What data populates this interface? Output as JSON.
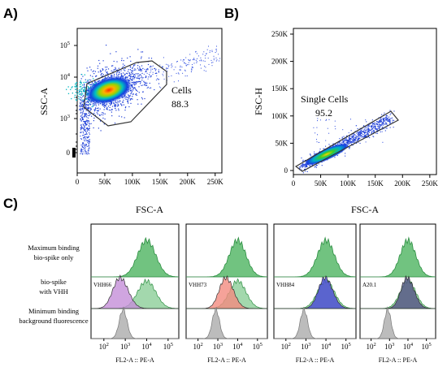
{
  "panels": {
    "a": "A)",
    "b": "B)",
    "c": "C)"
  },
  "row_labels": [
    {
      "line1": "Maximum binding",
      "line2": "bio-spike only"
    },
    {
      "line1": "bio-spike",
      "line2": "with VHH"
    },
    {
      "line1": "Minimum binding",
      "line2": "background fluorescence"
    }
  ],
  "chart_data": [
    {
      "type": "scatter",
      "xlabel": "FSC-A",
      "ylabel": "SSC-A",
      "x_ticks": [
        "0",
        "50K",
        "100K",
        "150K",
        "200K",
        "250K"
      ],
      "x_tick_values": [
        0,
        50000,
        100000,
        150000,
        200000,
        250000
      ],
      "xlim": [
        0,
        262144
      ],
      "y_ticks": [
        {
          "base": "0",
          "exp": ""
        },
        {
          "base": "10",
          "exp": "3"
        },
        {
          "base": "10",
          "exp": "4"
        },
        {
          "base": "10",
          "exp": "5"
        }
      ],
      "y_scale": "biexponential",
      "gate": {
        "name": "Cells",
        "percent": "88.3"
      },
      "point_cloud": {
        "x_center": 60000,
        "y_center_log": 3.75,
        "count_estimate": 2000
      },
      "colors": {
        "low": "#1540e0",
        "mid": "#00c0c0",
        "high": "#ff2a00"
      }
    },
    {
      "type": "scatter",
      "xlabel": "FSC-A",
      "ylabel": "FSC-H",
      "x_ticks": [
        "0",
        "50K",
        "100K",
        "150K",
        "200K",
        "250K"
      ],
      "x_tick_values": [
        0,
        50000,
        100000,
        150000,
        200000,
        250000
      ],
      "xlim": [
        0,
        262144
      ],
      "y_ticks": [
        "0",
        "50K",
        "100K",
        "150K",
        "200K",
        "250K"
      ],
      "y_tick_values": [
        0,
        50000,
        100000,
        150000,
        200000,
        250000
      ],
      "ylim": [
        0,
        262144
      ],
      "gate": {
        "name": "Single Cells",
        "percent": "95.2"
      },
      "point_cloud": {
        "x_center": 70000,
        "y_center": 45000,
        "count_estimate": 1500
      }
    },
    {
      "type": "area",
      "xlabel": "FL2-A :: PE-A",
      "x_scale": "log",
      "x_ticks": [
        {
          "base": "10",
          "exp": "2"
        },
        {
          "base": "10",
          "exp": "3"
        },
        {
          "base": "10",
          "exp": "4"
        },
        {
          "base": "10",
          "exp": "5"
        }
      ],
      "rows": [
        "Maximum binding bio-spike only",
        "bio-spike with VHH",
        "Minimum binding background fluorescence"
      ],
      "colors": {
        "max": "#58b86a",
        "min": "#b5b5b5"
      },
      "panels": [
        {
          "sample": "VHH66",
          "color": "#c48fd8",
          "peak_log": 2.75
        },
        {
          "sample": "VHH73",
          "color": "#f28b7f",
          "peak_log": 3.4
        },
        {
          "sample": "VHH84",
          "color": "#4747d6",
          "peak_log": 3.95
        },
        {
          "sample": "A20.1",
          "color": "#535383",
          "peak_log": 3.95
        }
      ],
      "max_peak_log": 4.0,
      "min_peak_log": 2.9
    }
  ]
}
